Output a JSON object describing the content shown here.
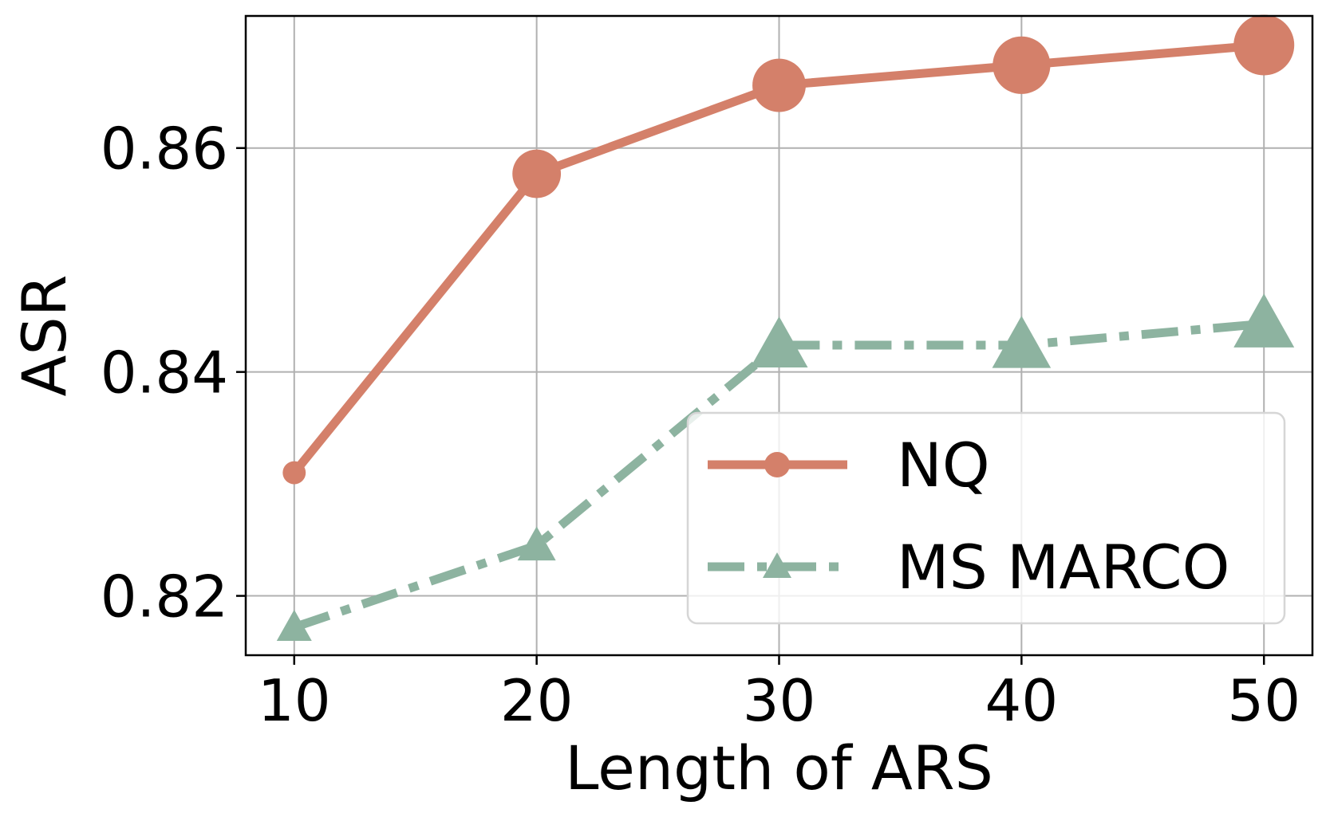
{
  "chart_data": {
    "type": "line",
    "xlabel": "Length of ARS",
    "ylabel": "ASR",
    "x": [
      10,
      20,
      30,
      40,
      50
    ],
    "x_ticks": [
      10,
      20,
      30,
      40,
      50
    ],
    "x_tick_labels": [
      "10",
      "20",
      "30",
      "40",
      "50"
    ],
    "y_ticks": [
      0.82,
      0.84,
      0.86
    ],
    "y_tick_labels": [
      "0.82",
      "0.84",
      "0.86"
    ],
    "xlim": [
      8,
      52
    ],
    "ylim": [
      0.8147,
      0.8718
    ],
    "grid": true,
    "legend_position": "lower-right",
    "series": [
      {
        "name": "NQ",
        "values": [
          0.831,
          0.8577,
          0.8656,
          0.8674,
          0.8692
        ],
        "color": "#d4806a",
        "marker": "circle",
        "line_style": "solid"
      },
      {
        "name": "MS MARCO",
        "values": [
          0.8172,
          0.8245,
          0.8424,
          0.8424,
          0.8443
        ],
        "color": "#8db3a0",
        "marker": "triangle",
        "line_style": "dash-dot"
      }
    ]
  }
}
